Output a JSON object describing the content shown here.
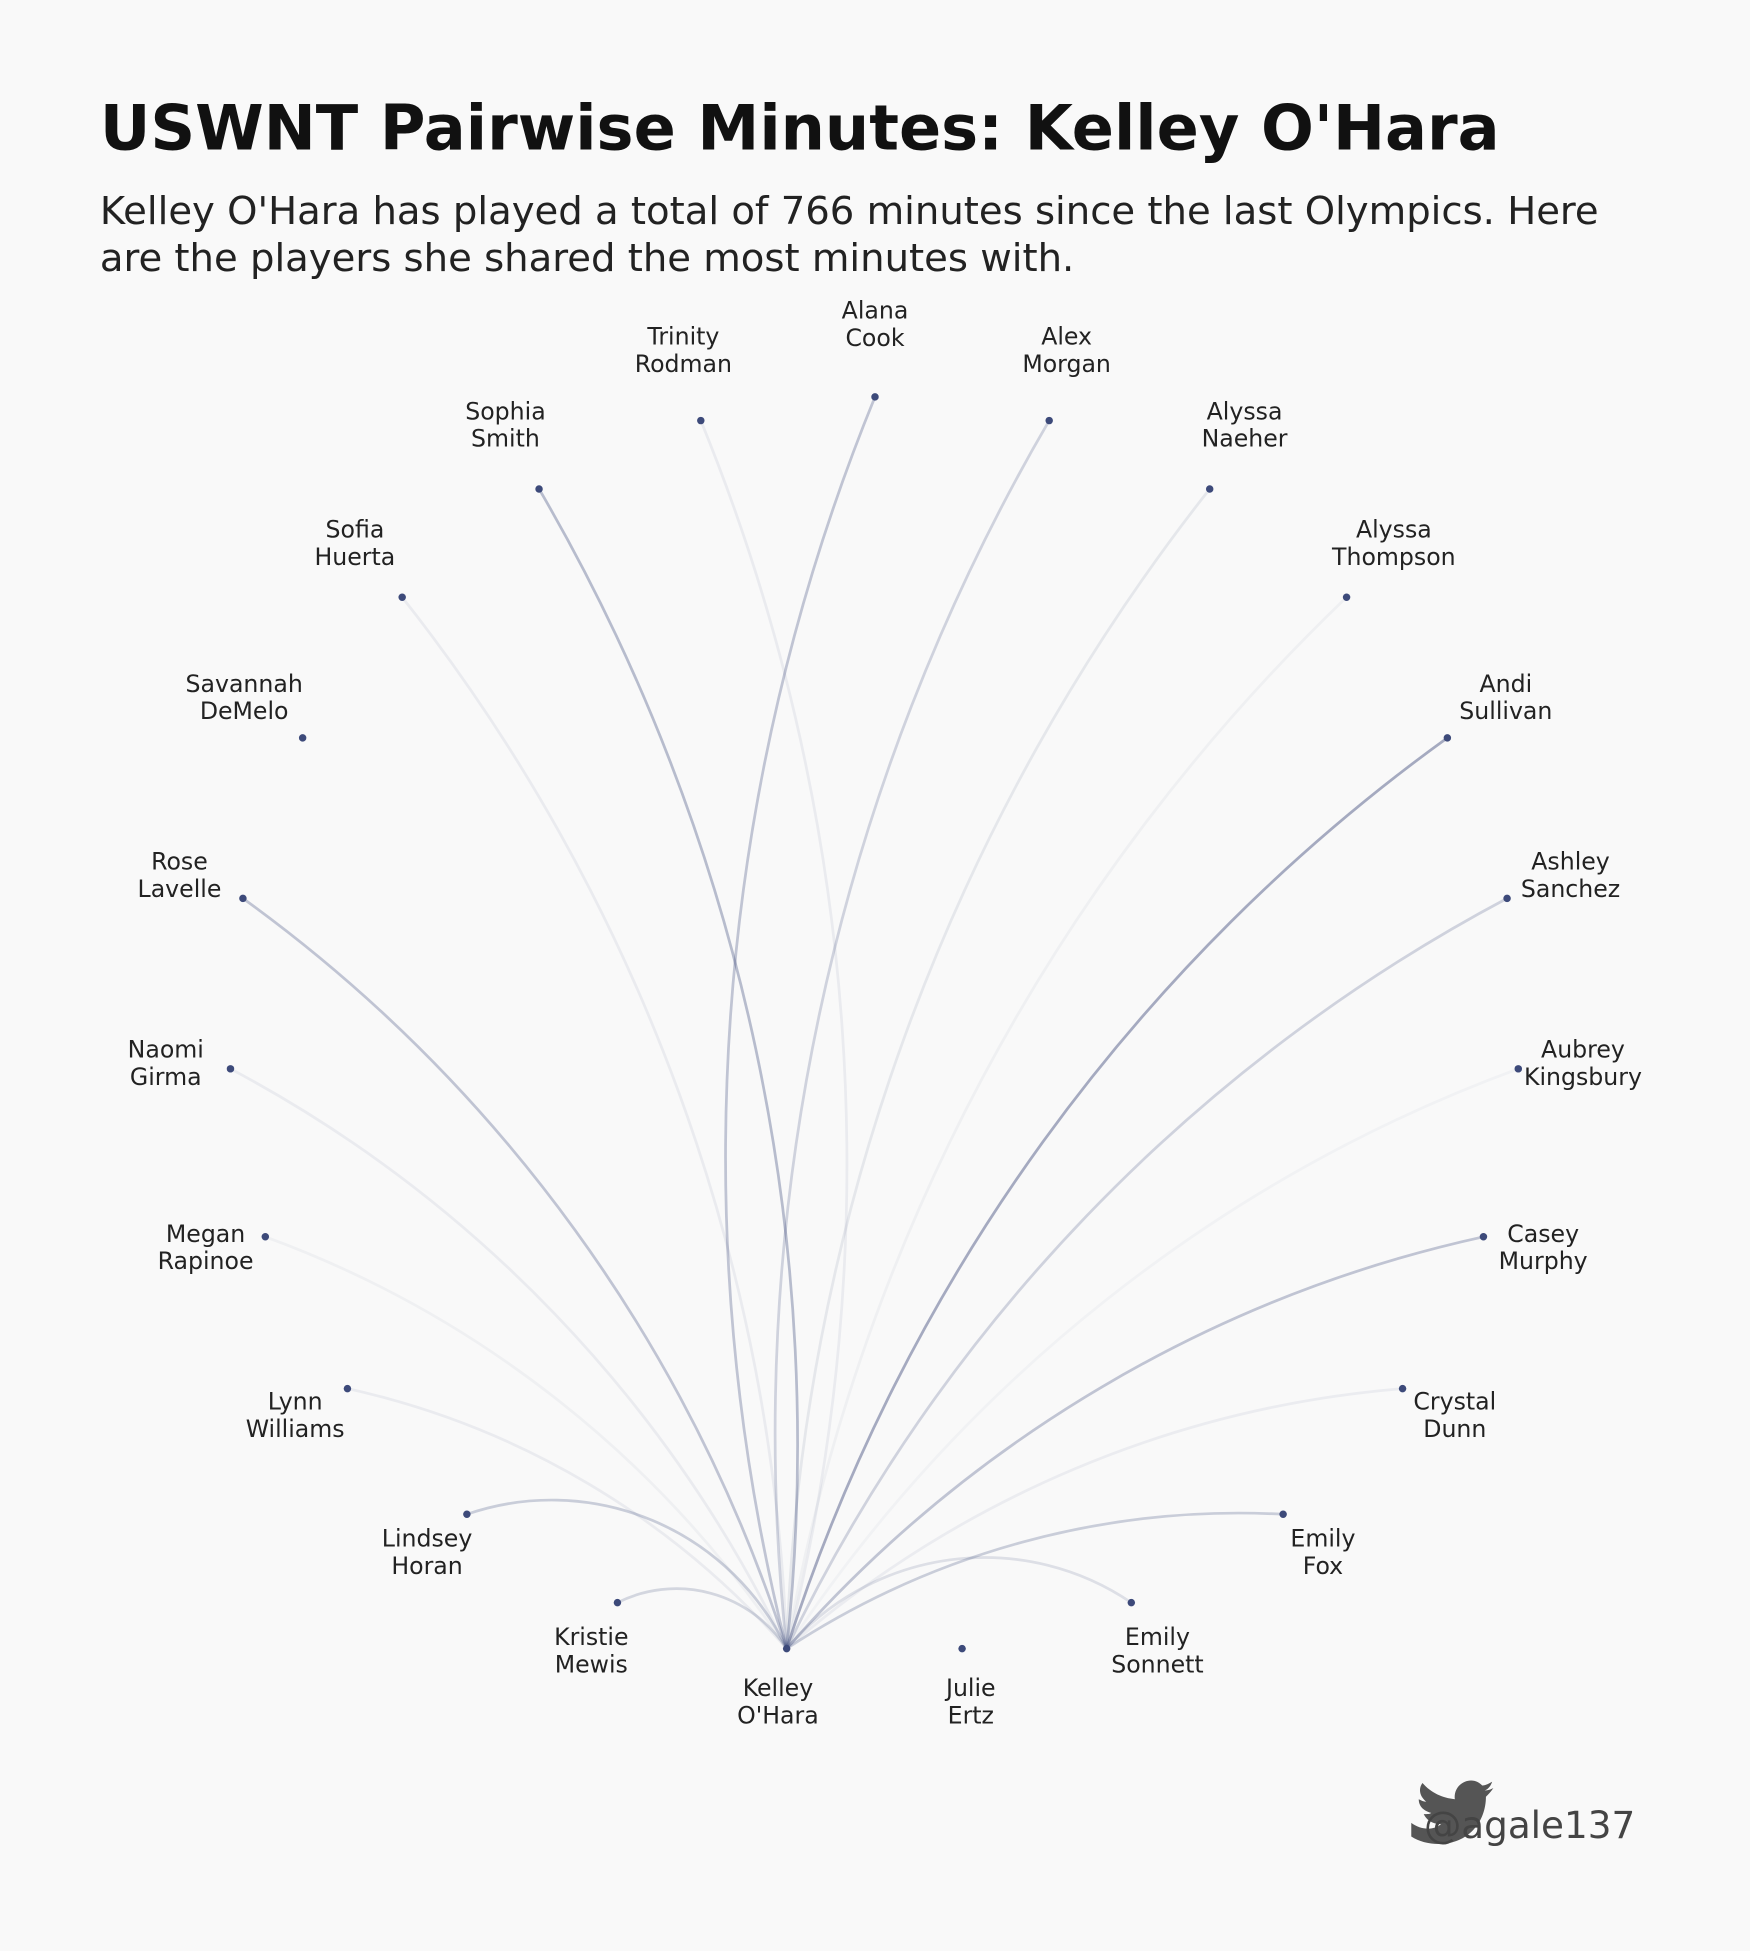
{
  "header": {
    "title": "USWNT Pairwise Minutes: Kelley O'Hara",
    "subtitle": "Kelley O'Hara has played a total of 766 minutes since the last Olympics. Here are the players she shared the most minutes with."
  },
  "nodes": [
    {
      "label": [
        "Kelley",
        "O'Hara"
      ]
    },
    {
      "label": [
        "Julie",
        "Ertz"
      ]
    },
    {
      "label": [
        "Emily",
        "Sonnett"
      ]
    },
    {
      "label": [
        "Emily",
        "Fox"
      ]
    },
    {
      "label": [
        "Crystal",
        "Dunn"
      ]
    },
    {
      "label": [
        "Casey",
        "Murphy"
      ]
    },
    {
      "label": [
        "Aubrey",
        "Kingsbury"
      ]
    },
    {
      "label": [
        "Ashley",
        "Sanchez"
      ]
    },
    {
      "label": [
        "Andi",
        "Sullivan"
      ]
    },
    {
      "label": [
        "Alyssa",
        "Thompson"
      ]
    },
    {
      "label": [
        "Alyssa",
        "Naeher"
      ]
    },
    {
      "label": [
        "Alex",
        "Morgan"
      ]
    },
    {
      "label": [
        "Alana",
        "Cook"
      ]
    },
    {
      "label": [
        "Trinity",
        "Rodman"
      ]
    },
    {
      "label": [
        "Sophia",
        "Smith"
      ]
    },
    {
      "label": [
        "Sofia",
        "Huerta"
      ]
    },
    {
      "label": [
        "Savannah",
        "DeMelo"
      ]
    },
    {
      "label": [
        "Rose",
        "Lavelle"
      ]
    },
    {
      "label": [
        "Naomi",
        "Girma"
      ]
    },
    {
      "label": [
        "Megan",
        "Rapinoe"
      ]
    },
    {
      "label": [
        "Lynn",
        "Williams"
      ]
    },
    {
      "label": [
        "Lindsey",
        "Horan"
      ]
    },
    {
      "label": [
        "Kristie",
        "Mewis"
      ]
    }
  ],
  "footer": {
    "credit": "@agale137"
  }
}
